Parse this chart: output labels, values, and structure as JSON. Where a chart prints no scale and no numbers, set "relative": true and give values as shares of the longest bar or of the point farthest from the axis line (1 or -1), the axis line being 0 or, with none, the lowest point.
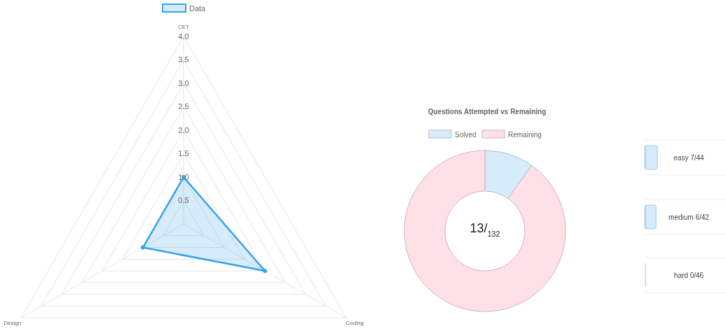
{
  "chart_data": [
    {
      "type": "radar",
      "categories": [
        "CET",
        "Coding",
        "Design"
      ],
      "series": [
        {
          "name": "Data",
          "color": "#36a2eb",
          "values": [
            1,
            2,
            1
          ]
        }
      ],
      "ylim": [
        0,
        4
      ],
      "yticks": [
        0.5,
        {
          "value": 1,
          "label": "1.0"
        },
        1.5,
        {
          "value": 2,
          "label": "2.0"
        },
        2.5,
        {
          "value": 3,
          "label": "3.0"
        },
        3.5,
        {
          "value": 4,
          "label": "4.0"
        }
      ],
      "grid": true,
      "legend": "top",
      "marker": "circle"
    },
    {
      "type": "donut",
      "title": "Questions Attempted vs Remaining",
      "categories": [
        "Solved",
        "Remaining"
      ],
      "values": [
        9.85,
        90.15
      ],
      "colors": [
        "#d7ecfb",
        "#ffe0e6"
      ],
      "legend": "top",
      "annotations": [
        "13/$_{132}$"
      ]
    },
    {
      "type": "bar",
      "orientation": "horizontal",
      "relative": true,
      "categories": [
        "easy 7/44",
        "medium 6/42",
        "hard 0/46"
      ],
      "values": [
        1,
        0.9,
        0
      ],
      "color": "#d7ecfb"
    }
  ]
}
